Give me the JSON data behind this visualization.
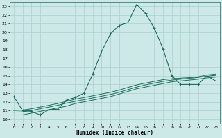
{
  "xlabel": "Humidex (Indice chaleur)",
  "bg_color": "#cce9e7",
  "grid_color": "#aacfcd",
  "line_color": "#1a6b60",
  "xlim": [
    -0.5,
    23.5
  ],
  "ylim": [
    9.5,
    23.5
  ],
  "yticks": [
    10,
    11,
    12,
    13,
    14,
    15,
    16,
    17,
    18,
    19,
    20,
    21,
    22,
    23
  ],
  "xticks": [
    0,
    1,
    2,
    3,
    4,
    5,
    6,
    7,
    8,
    9,
    10,
    11,
    12,
    13,
    14,
    15,
    16,
    17,
    18,
    19,
    20,
    21,
    22,
    23
  ],
  "line1_x": [
    0,
    1,
    2,
    3,
    4,
    5,
    6,
    7,
    8,
    9,
    10,
    11,
    12,
    13,
    14,
    15,
    16,
    17,
    18,
    19,
    20,
    21,
    22,
    23
  ],
  "line1_y": [
    12.6,
    11.0,
    10.9,
    10.5,
    11.1,
    11.15,
    12.2,
    12.5,
    13.0,
    15.2,
    17.8,
    19.8,
    20.8,
    21.1,
    23.2,
    22.2,
    20.5,
    18.1,
    15.0,
    14.0,
    14.0,
    14.0,
    15.0,
    14.4
  ],
  "line2_x": [
    0,
    1,
    2,
    3,
    4,
    5,
    6,
    7,
    8,
    9,
    10,
    11,
    12,
    13,
    14,
    15,
    16,
    17,
    18,
    19,
    20,
    21,
    22,
    23
  ],
  "line2_y": [
    10.5,
    10.5,
    10.7,
    10.9,
    11.1,
    11.3,
    11.5,
    11.8,
    12.0,
    12.2,
    12.4,
    12.6,
    12.9,
    13.2,
    13.5,
    13.7,
    13.9,
    14.1,
    14.3,
    14.4,
    14.5,
    14.6,
    14.75,
    14.85
  ],
  "line3_x": [
    0,
    1,
    2,
    3,
    4,
    5,
    6,
    7,
    8,
    9,
    10,
    11,
    12,
    13,
    14,
    15,
    16,
    17,
    18,
    19,
    20,
    21,
    22,
    23
  ],
  "line3_y": [
    10.8,
    10.85,
    11.0,
    11.2,
    11.4,
    11.6,
    11.85,
    12.05,
    12.25,
    12.45,
    12.65,
    12.85,
    13.1,
    13.4,
    13.7,
    13.95,
    14.15,
    14.35,
    14.5,
    14.6,
    14.7,
    14.8,
    14.95,
    15.05
  ],
  "line4_x": [
    0,
    1,
    2,
    3,
    4,
    5,
    6,
    7,
    8,
    9,
    10,
    11,
    12,
    13,
    14,
    15,
    16,
    17,
    18,
    19,
    20,
    21,
    22,
    23
  ],
  "line4_y": [
    11.0,
    11.05,
    11.2,
    11.4,
    11.6,
    11.8,
    12.05,
    12.3,
    12.5,
    12.7,
    12.9,
    13.1,
    13.35,
    13.65,
    13.95,
    14.15,
    14.35,
    14.55,
    14.65,
    14.72,
    14.78,
    14.88,
    15.1,
    15.2
  ]
}
